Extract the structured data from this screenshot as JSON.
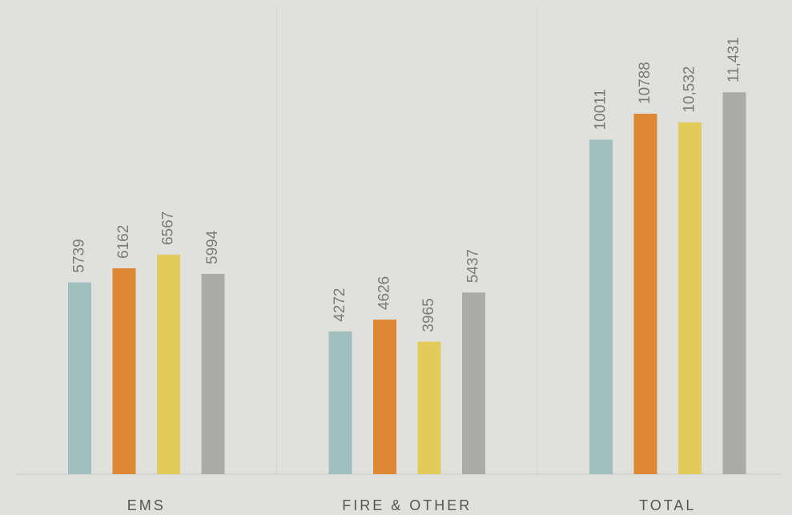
{
  "chart_data": {
    "type": "bar",
    "categories": [
      "EMS",
      "FIRE & OTHER",
      "TOTAL"
    ],
    "series": [
      {
        "color": "#9fbfbf",
        "values": [
          5739,
          4272,
          10011
        ]
      },
      {
        "color": "#de8734",
        "values": [
          6162,
          4626,
          10788
        ]
      },
      {
        "color": "#e3cb59",
        "values": [
          6567,
          3965,
          10532
        ],
        "value_labels": [
          "6567",
          "3965",
          "10,532"
        ]
      },
      {
        "color": "#abaca7",
        "values": [
          5994,
          5437,
          11431
        ],
        "value_labels": [
          "5994",
          "5437",
          "11,431"
        ]
      }
    ],
    "ylim": [
      0,
      14000
    ]
  }
}
